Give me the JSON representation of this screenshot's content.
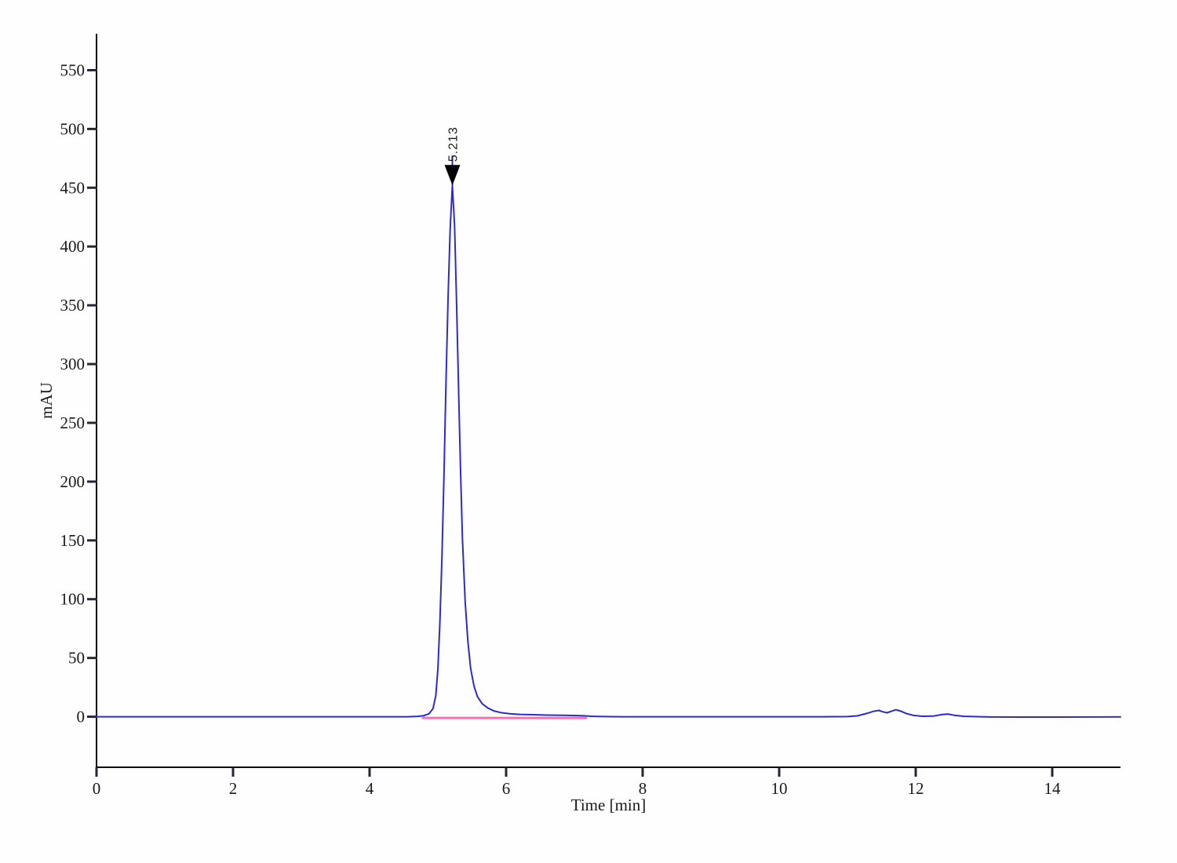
{
  "page": {
    "background": "#fefefe"
  },
  "chart_data": {
    "type": "line",
    "title": "",
    "xlabel": "Time [min]",
    "ylabel": "mAU",
    "xlim": [
      0,
      15
    ],
    "ylim": [
      -43,
      581
    ],
    "x_ticks": [
      0,
      2,
      4,
      6,
      8,
      10,
      12,
      14
    ],
    "y_ticks": [
      0,
      50,
      100,
      150,
      200,
      250,
      300,
      350,
      400,
      450,
      500,
      550
    ],
    "grid": false,
    "legend": false,
    "colors": {
      "signal": "#2b2bd0",
      "integration_baseline": "#f272b2",
      "axis": "#000000",
      "tick": "#232838",
      "text": "#1a1a1a",
      "peak_marker": "#000000"
    },
    "peaks": [
      {
        "label": "5.213",
        "time": 5.213,
        "apex_mAU": 452
      }
    ],
    "series": [
      {
        "name": "integration-baseline",
        "color_key": "integration_baseline",
        "width": 3,
        "points": [
          [
            4.78,
            -1
          ],
          [
            7.17,
            -1
          ]
        ]
      },
      {
        "name": "detector-signal",
        "color_key": "signal",
        "width": 2,
        "points": [
          [
            0,
            0
          ],
          [
            0.6,
            0
          ],
          [
            1.2,
            0
          ],
          [
            1.8,
            0
          ],
          [
            2.4,
            0
          ],
          [
            3.0,
            0
          ],
          [
            3.6,
            0
          ],
          [
            4.2,
            0
          ],
          [
            4.55,
            0
          ],
          [
            4.7,
            0.3
          ],
          [
            4.8,
            1
          ],
          [
            4.87,
            2.5
          ],
          [
            4.93,
            7
          ],
          [
            4.97,
            18
          ],
          [
            5.0,
            40
          ],
          [
            5.03,
            80
          ],
          [
            5.06,
            135
          ],
          [
            5.09,
            205
          ],
          [
            5.12,
            285
          ],
          [
            5.15,
            358
          ],
          [
            5.18,
            415
          ],
          [
            5.213,
            452
          ],
          [
            5.245,
            418
          ],
          [
            5.27,
            362
          ],
          [
            5.3,
            288
          ],
          [
            5.33,
            215
          ],
          [
            5.36,
            152
          ],
          [
            5.4,
            98
          ],
          [
            5.44,
            64
          ],
          [
            5.48,
            41
          ],
          [
            5.53,
            26
          ],
          [
            5.58,
            17
          ],
          [
            5.65,
            11
          ],
          [
            5.73,
            7.5
          ],
          [
            5.82,
            5
          ],
          [
            5.92,
            3.6
          ],
          [
            6.05,
            2.6
          ],
          [
            6.2,
            2
          ],
          [
            6.4,
            1.7
          ],
          [
            6.6,
            1.4
          ],
          [
            6.85,
            1.2
          ],
          [
            7.05,
            1
          ],
          [
            7.15,
            0.8
          ],
          [
            7.25,
            0.4
          ],
          [
            7.45,
            0.1
          ],
          [
            7.7,
            0
          ],
          [
            8.2,
            0
          ],
          [
            8.8,
            0
          ],
          [
            9.4,
            0
          ],
          [
            10.0,
            0
          ],
          [
            10.6,
            0
          ],
          [
            11.0,
            0.1
          ],
          [
            11.15,
            0.8
          ],
          [
            11.28,
            2.8
          ],
          [
            11.38,
            4.6
          ],
          [
            11.46,
            5.4
          ],
          [
            11.52,
            4.2
          ],
          [
            11.58,
            3.4
          ],
          [
            11.64,
            4.6
          ],
          [
            11.71,
            5.9
          ],
          [
            11.78,
            4.8
          ],
          [
            11.87,
            2.6
          ],
          [
            11.97,
            1.1
          ],
          [
            12.1,
            0.4
          ],
          [
            12.25,
            0.5
          ],
          [
            12.38,
            1.8
          ],
          [
            12.47,
            2.3
          ],
          [
            12.57,
            1.2
          ],
          [
            12.7,
            0.4
          ],
          [
            12.85,
            0.1
          ],
          [
            13.1,
            -0.2
          ],
          [
            13.5,
            -0.3
          ],
          [
            14.0,
            -0.3
          ],
          [
            14.5,
            -0.2
          ],
          [
            15.0,
            -0.1
          ]
        ]
      }
    ]
  }
}
